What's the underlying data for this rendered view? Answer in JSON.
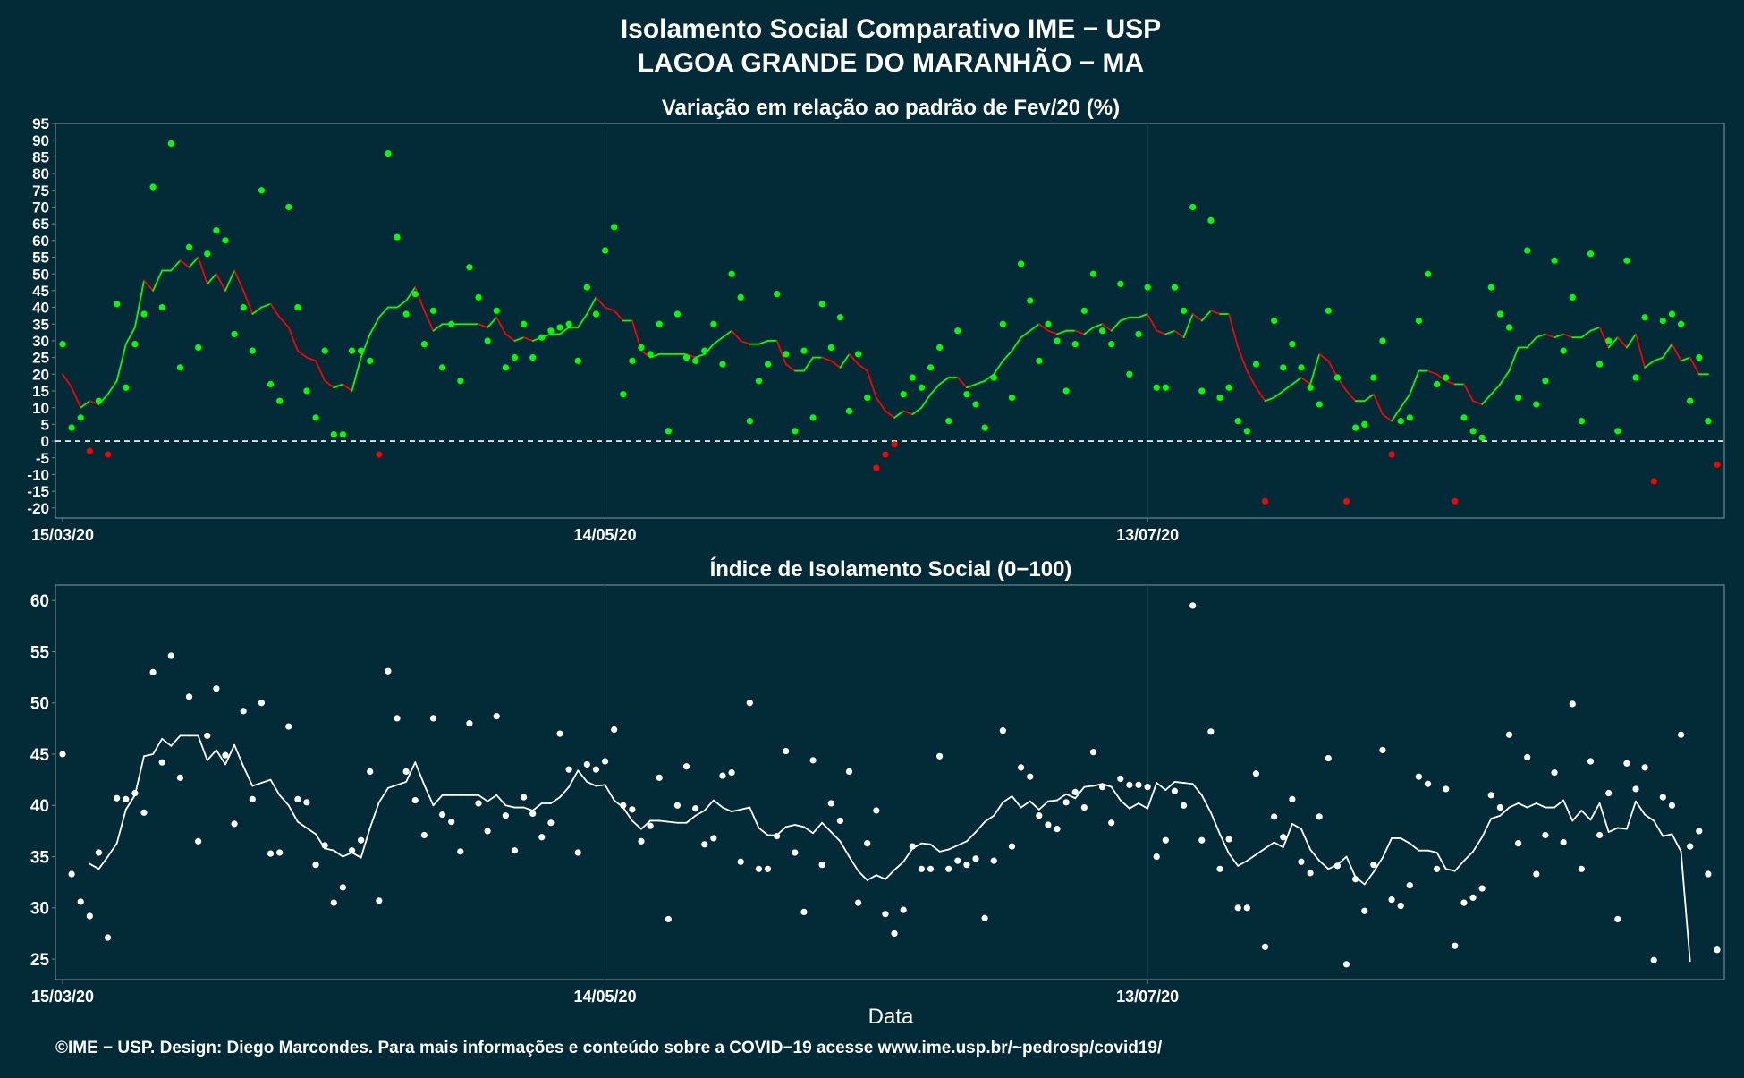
{
  "header": {
    "title_line1": "Isolamento Social Comparativo IME − USP",
    "title_line2": "LAGOA GRANDE DO MARANHÃO − MA"
  },
  "footer": {
    "xlabel": "Data",
    "credit": "©IME − USP. Design: Diego Marcondes. Para mais informações e conteúdo sobre a COVID−19 acesse www.ime.usp.br/~pedrosp/covid19/"
  },
  "colors": {
    "background": "#022a37",
    "positive": "#00ff00",
    "negative": "#ff0000",
    "index": "#ffffff",
    "axis": "#6f8790"
  },
  "chart_data": [
    {
      "type": "scatter",
      "title": "Variação em relação ao padrão de Fev/20 (%)",
      "start_date": "15/03/20",
      "x_tick_labels": [
        "15/03/20",
        "14/05/20",
        "13/07/20"
      ],
      "x_tick_days": [
        0,
        60,
        120
      ],
      "ylim": [
        -23,
        95
      ],
      "y_ticks": [
        -20,
        -15,
        -10,
        -5,
        0,
        5,
        10,
        15,
        20,
        25,
        30,
        35,
        40,
        45,
        50,
        55,
        60,
        65,
        70,
        75,
        80,
        85,
        90,
        95
      ],
      "reference_line": 0,
      "series": [
        {
          "values": [
            29,
            4,
            7,
            -3,
            12,
            -4,
            41,
            16,
            29,
            38,
            76,
            40,
            89,
            22,
            58,
            28,
            56,
            63,
            60,
            32,
            40,
            27,
            75,
            17,
            12,
            70,
            40,
            15,
            7,
            27,
            2,
            2,
            27,
            27,
            24,
            -4,
            86,
            61,
            38,
            44,
            29,
            39,
            22,
            35,
            18,
            52,
            43,
            30,
            39,
            22,
            25,
            35,
            25,
            31,
            33,
            34,
            35,
            24,
            46,
            38,
            57,
            64,
            14,
            24,
            28,
            26,
            35,
            3,
            38,
            25,
            24,
            27,
            35,
            23,
            50,
            43,
            6,
            18,
            23,
            44,
            26,
            3,
            27,
            7,
            41,
            28,
            37,
            9,
            26,
            13,
            -8,
            -4,
            -1,
            14,
            19,
            16,
            22,
            28,
            6,
            33,
            14,
            11,
            4,
            19,
            35,
            13,
            53,
            42,
            24,
            35,
            30,
            15,
            29,
            39,
            50,
            33,
            29,
            47,
            20,
            32,
            46,
            16,
            16,
            46,
            39,
            70,
            15,
            66,
            13,
            16,
            6,
            3,
            23,
            -18,
            36,
            22,
            29,
            22,
            16,
            11,
            39,
            19,
            -18,
            4,
            5,
            19,
            30,
            -4,
            6,
            7,
            36,
            50,
            17,
            19,
            -18,
            7,
            3,
            1,
            46,
            38,
            34,
            13,
            57,
            11,
            18,
            54,
            27,
            43,
            6,
            56,
            23,
            30,
            3,
            54,
            19,
            37,
            -12,
            36,
            38,
            35,
            12,
            25,
            6,
            -7
          ],
          "moving_average": [
            20,
            16,
            10,
            12,
            11,
            14,
            18,
            29,
            34,
            48,
            45,
            51,
            51,
            54,
            52,
            55,
            47,
            50,
            45,
            51,
            45,
            38,
            40,
            41,
            37,
            34,
            27,
            25,
            24,
            18,
            16,
            17,
            15,
            25,
            32,
            37,
            40,
            40,
            42,
            46,
            39,
            33,
            35,
            35,
            35,
            35,
            35,
            34,
            37,
            32,
            30,
            31,
            30,
            31,
            32,
            32,
            34,
            34,
            38,
            43,
            40,
            39,
            36,
            36,
            27,
            25,
            26,
            26,
            26,
            26,
            25,
            26,
            29,
            31,
            33,
            30,
            29,
            29,
            30,
            30,
            23,
            21,
            21,
            25,
            25,
            24,
            22,
            26,
            23,
            21,
            13,
            9,
            7,
            9,
            8,
            10,
            14,
            17,
            19,
            19,
            16,
            17,
            18,
            20,
            24,
            27,
            31,
            33,
            35,
            33,
            32,
            33,
            33,
            32,
            34,
            35,
            33,
            36,
            37,
            37,
            38,
            33,
            32,
            33,
            31,
            38,
            36,
            39,
            38,
            38,
            28,
            21,
            16,
            12,
            13,
            15,
            17,
            19,
            17,
            26,
            24,
            19,
            15,
            12,
            12,
            14,
            8,
            6,
            10,
            14,
            21,
            21,
            20,
            18,
            17,
            17,
            12,
            11,
            14,
            17,
            21,
            28,
            28,
            31,
            32,
            31,
            32,
            31,
            31,
            33,
            34,
            28,
            31,
            28,
            32,
            22,
            24,
            25,
            29,
            24,
            25,
            20,
            20
          ]
        }
      ]
    },
    {
      "type": "scatter",
      "title": "Índice de Isolamento Social (0−100)",
      "start_date": "15/03/20",
      "xlabel": "Data",
      "x_tick_labels": [
        "15/03/20",
        "14/05/20",
        "13/07/20"
      ],
      "x_tick_days": [
        0,
        60,
        120
      ],
      "ylim": [
        23,
        61.5
      ],
      "y_ticks": [
        25,
        30,
        35,
        40,
        45,
        50,
        55,
        60
      ],
      "series": [
        {
          "values": [
            45.0,
            33.3,
            30.6,
            29.2,
            35.4,
            27.1,
            40.7,
            40.6,
            41.2,
            39.3,
            53.0,
            44.2,
            54.6,
            42.7,
            50.6,
            36.5,
            46.8,
            51.4,
            44.9,
            38.2,
            49.2,
            40.6,
            50.0,
            35.3,
            35.4,
            47.7,
            40.6,
            40.3,
            34.2,
            36.1,
            30.5,
            32.0,
            35.6,
            36.6,
            43.3,
            30.7,
            53.1,
            48.5,
            43.3,
            40.5,
            37.1,
            48.5,
            39.1,
            38.4,
            35.5,
            48.0,
            40.2,
            37.5,
            48.7,
            39.0,
            35.6,
            40.8,
            39.2,
            36.9,
            38.3,
            47.0,
            43.5,
            35.4,
            44.0,
            43.5,
            44.3,
            47.4,
            40.0,
            39.6,
            36.5,
            38.0,
            42.7,
            28.9,
            40.0,
            43.8,
            39.7,
            36.2,
            36.8,
            42.9,
            43.2,
            34.5,
            50.0,
            33.8,
            33.8,
            37.0,
            45.3,
            35.4,
            29.6,
            44.4,
            34.2,
            40.2,
            38.5,
            43.3,
            30.5,
            36.3,
            39.5,
            29.4,
            27.5,
            29.8,
            36.0,
            33.8,
            33.8,
            44.8,
            33.8,
            34.6,
            34.2,
            34.8,
            29.0,
            34.6,
            47.3,
            36.0,
            43.7,
            42.8,
            39.0,
            38.1,
            37.7,
            40.3,
            41.3,
            39.8,
            45.2,
            41.8,
            38.3,
            42.6,
            42.0,
            42.0,
            41.8,
            35.0,
            36.6,
            41.4,
            40.0,
            59.5,
            36.6,
            47.2,
            33.8,
            36.7,
            30.0,
            30.0,
            43.1,
            26.2,
            38.9,
            36.9,
            40.6,
            34.5,
            33.4,
            38.9,
            44.6,
            34.1,
            24.5,
            32.8,
            29.7,
            34.2,
            45.4,
            30.8,
            30.2,
            32.2,
            42.8,
            42.1,
            33.8,
            41.6,
            26.3,
            30.5,
            31.0,
            31.9,
            41.0,
            39.8,
            46.9,
            36.3,
            44.7,
            33.3,
            37.1,
            43.2,
            36.4,
            49.9,
            33.8,
            44.3,
            37.1,
            41.2,
            28.9,
            44.1,
            41.6,
            43.7,
            24.9,
            40.8,
            40.0,
            46.9,
            36.0,
            37.5,
            33.3,
            25.9
          ],
          "moving_average": [
            null,
            null,
            null,
            34.3,
            33.8,
            35.0,
            36.3,
            39.6,
            41.0,
            44.8,
            45.0,
            46.5,
            45.8,
            46.8,
            46.8,
            46.8,
            44.4,
            45.4,
            44.0,
            45.9,
            43.8,
            41.9,
            42.2,
            42.5,
            41.0,
            40.0,
            38.4,
            37.8,
            37.2,
            35.8,
            35.6,
            35.0,
            35.4,
            34.9,
            37.8,
            40.3,
            41.7,
            42.0,
            42.3,
            44.2,
            42.0,
            40.0,
            41.0,
            41.0,
            41.0,
            41.0,
            41.0,
            40.4,
            41.0,
            40.0,
            39.8,
            39.8,
            39.5,
            40.2,
            40.2,
            40.8,
            41.8,
            43.4,
            42.3,
            41.9,
            42.0,
            40.5,
            39.8,
            38.5,
            37.7,
            38.5,
            38.5,
            38.4,
            38.3,
            38.3,
            39.0,
            39.5,
            40.5,
            39.8,
            39.4,
            39.6,
            39.8,
            37.8,
            37.1,
            37.1,
            37.9,
            38.1,
            37.9,
            37.3,
            38.3,
            37.4,
            36.5,
            35.0,
            33.6,
            32.7,
            33.2,
            32.8,
            33.7,
            34.5,
            35.8,
            36.3,
            36.2,
            35.5,
            35.7,
            36.1,
            36.5,
            37.4,
            38.4,
            39.0,
            40.3,
            40.9,
            39.8,
            40.4,
            39.6,
            40.4,
            40.5,
            41.1,
            40.7,
            41.8,
            41.9,
            42.1,
            41.8,
            40.5,
            39.7,
            40.2,
            39.7,
            42.2,
            41.5,
            42.3,
            42.2,
            42.1,
            41.0,
            39.3,
            37.2,
            35.3,
            34.1,
            34.6,
            35.2,
            35.8,
            36.4,
            35.9,
            38.2,
            37.7,
            35.7,
            34.6,
            33.8,
            34.2,
            35.0,
            33.0,
            32.3,
            33.5,
            34.9,
            36.8,
            36.8,
            36.3,
            35.6,
            35.6,
            35.4,
            33.8,
            33.6,
            34.6,
            35.5,
            36.9,
            38.7,
            39.0,
            39.8,
            40.2,
            39.8,
            40.2,
            39.8,
            39.8,
            40.5,
            38.5,
            39.5,
            38.6,
            40.2,
            37.4,
            37.8,
            37.7,
            40.4,
            39.1,
            38.5,
            37.0,
            37.2,
            35.5,
            24.8
          ]
        }
      ]
    }
  ]
}
